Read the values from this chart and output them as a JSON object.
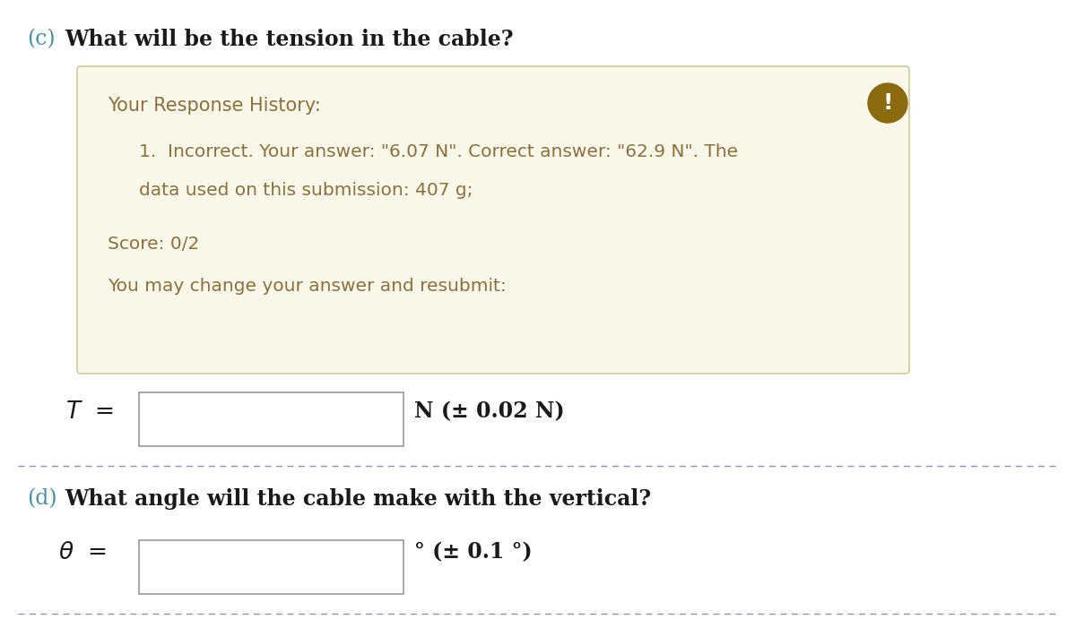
{
  "box_bg_color": "#faf8e8",
  "box_border_color": "#c8c090",
  "history_title": "Your Response History:",
  "history_color": "#8b7040",
  "history_line1": "1.  Incorrect. Your answer: \"6.07 N\". Correct answer: \"62.9 N\". The",
  "history_line2": "data used on this submission: 407 g;",
  "score_text": "Score: 0/2",
  "resubmit_text": "You may change your answer and resubmit:",
  "icon_bg_color": "#8b6a10",
  "T_units": "N (± 0.02 N)",
  "divider_color": "#9090b8",
  "title_d_text": "What angle will the cable make with the vertical?",
  "theta_units": "° (± 0.1 °)",
  "bg_color": "#ffffff",
  "text_color": "#1a1a1a",
  "input_box_border": "#999999",
  "label_color": "#4a8fa8",
  "title_c_text": "What will be the tension in the cable?",
  "prefix_c": "(c)",
  "prefix_d": "(d)"
}
